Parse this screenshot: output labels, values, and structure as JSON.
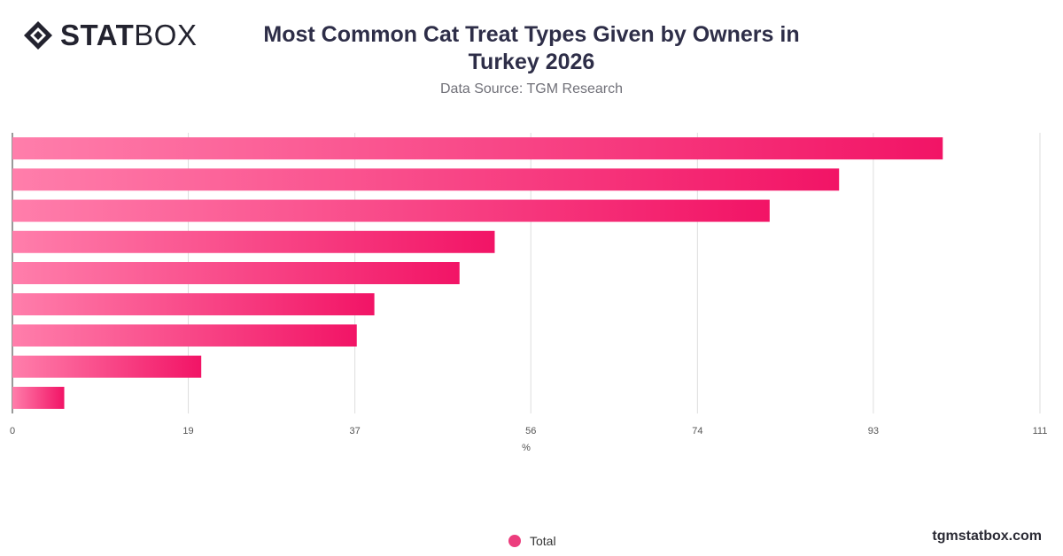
{
  "header": {
    "logo_text_bold": "STAT",
    "logo_text_light": "BOX",
    "title": "Most Common Cat Treat Types Given by Owners in Turkey 2026",
    "subtitle": "Data Source: TGM Research"
  },
  "footer": {
    "site": "tgmstatbox.com"
  },
  "colors": {
    "bar_start": "#ff7eab",
    "bar_end": "#f21466",
    "legend_dot": "#ec3d7d",
    "grid": "#dddddd"
  },
  "chart_data": {
    "type": "bar",
    "orientation": "horizontal",
    "categories": [
      "",
      "",
      "",
      "",
      "",
      "",
      "",
      "",
      ""
    ],
    "series": [
      {
        "name": "Total",
        "values": [
          100.5,
          89.3,
          81.8,
          52.1,
          48.3,
          39.1,
          37.2,
          20.4,
          5.6
        ]
      }
    ],
    "x_ticks": [
      "0",
      "19",
      "37",
      "56",
      "74",
      "93",
      "111"
    ],
    "xlabel": "%",
    "ylabel": "",
    "xlim": [
      0,
      111
    ],
    "grid": true,
    "legend": {
      "position": "bottom-center",
      "entries": [
        "Total"
      ]
    }
  }
}
